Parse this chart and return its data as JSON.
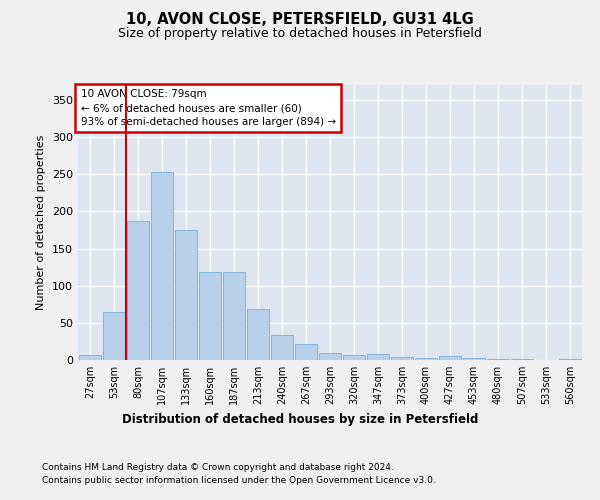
{
  "title_line1": "10, AVON CLOSE, PETERSFIELD, GU31 4LG",
  "title_line2": "Size of property relative to detached houses in Petersfield",
  "xlabel": "Distribution of detached houses by size in Petersfield",
  "ylabel": "Number of detached properties",
  "categories": [
    "27sqm",
    "53sqm",
    "80sqm",
    "107sqm",
    "133sqm",
    "160sqm",
    "187sqm",
    "213sqm",
    "240sqm",
    "267sqm",
    "293sqm",
    "320sqm",
    "347sqm",
    "373sqm",
    "400sqm",
    "427sqm",
    "453sqm",
    "480sqm",
    "507sqm",
    "533sqm",
    "560sqm"
  ],
  "values": [
    7,
    65,
    187,
    253,
    175,
    118,
    118,
    69,
    33,
    22,
    9,
    7,
    8,
    4,
    3,
    5,
    3,
    2,
    1,
    0,
    2
  ],
  "bar_color": "#b8d0ea",
  "bar_edge_color": "#7aadd4",
  "vline_position": 1.5,
  "vline_color": "#cc0000",
  "annotation_line1": "10 AVON CLOSE: 79sqm",
  "annotation_line2": "← 6% of detached houses are smaller (60)",
  "annotation_line3": "93% of semi-detached houses are larger (894) →",
  "annotation_box_facecolor": "#ffffff",
  "annotation_box_edgecolor": "#cc0000",
  "ylim": [
    0,
    370
  ],
  "yticks": [
    0,
    50,
    100,
    150,
    200,
    250,
    300,
    350
  ],
  "fig_bg_color": "#f0f0f0",
  "ax_bg_color": "#dde5f0",
  "grid_color": "#ffffff",
  "footer_line1": "Contains HM Land Registry data © Crown copyright and database right 2024.",
  "footer_line2": "Contains public sector information licensed under the Open Government Licence v3.0."
}
